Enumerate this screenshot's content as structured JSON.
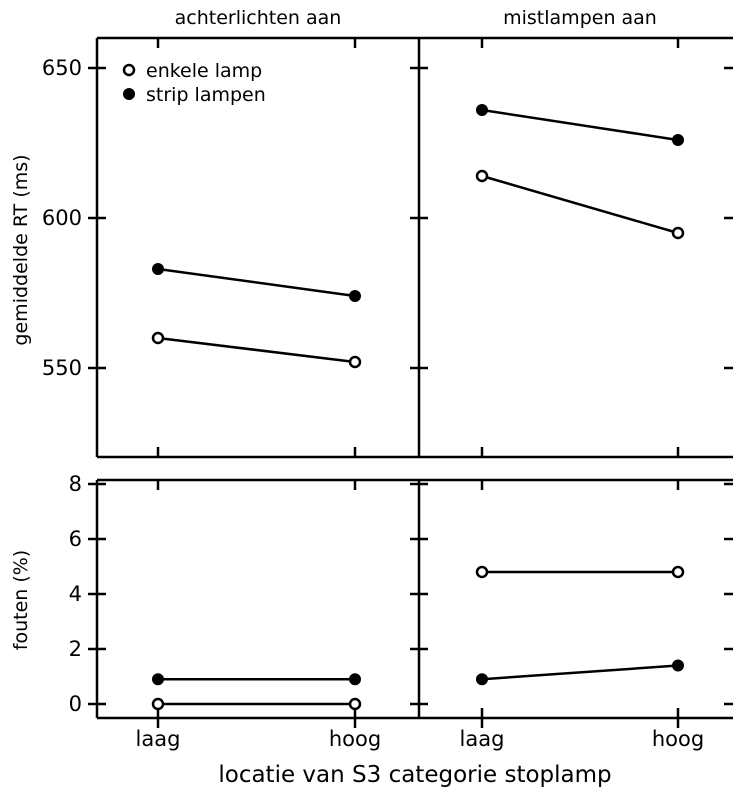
{
  "chart_data": [
    {
      "type": "line",
      "panel": "top-left",
      "title": "achterlichten aan",
      "categories": [
        "laag",
        "hoog"
      ],
      "ylabel": "gemiddelde RT (ms)",
      "ylim": [
        520,
        663
      ],
      "yticks": [
        550,
        600,
        650
      ],
      "series": [
        {
          "name": "enkele lamp",
          "marker": "open",
          "values": [
            560,
            552
          ]
        },
        {
          "name": "strip lampen",
          "marker": "filled",
          "values": [
            583,
            574
          ]
        }
      ]
    },
    {
      "type": "line",
      "panel": "top-right",
      "title": "mistlampen aan",
      "categories": [
        "laag",
        "hoog"
      ],
      "ylim": [
        520,
        663
      ],
      "series": [
        {
          "name": "enkele lamp",
          "marker": "open",
          "values": [
            614,
            595
          ]
        },
        {
          "name": "strip lampen",
          "marker": "filled",
          "values": [
            636,
            626
          ]
        }
      ]
    },
    {
      "type": "line",
      "panel": "bottom-left",
      "categories": [
        "laag",
        "hoog"
      ],
      "ylabel": "fouten (%)",
      "ylim": [
        -0.5,
        8
      ],
      "yticks": [
        0,
        2,
        4,
        6,
        8
      ],
      "series": [
        {
          "name": "enkele lamp",
          "marker": "open",
          "values": [
            0,
            0
          ]
        },
        {
          "name": "strip lampen",
          "marker": "filled",
          "values": [
            0.9,
            0.9
          ]
        }
      ]
    },
    {
      "type": "line",
      "panel": "bottom-right",
      "categories": [
        "laag",
        "hoog"
      ],
      "ylim": [
        -0.5,
        8
      ],
      "series": [
        {
          "name": "enkele lamp",
          "marker": "open",
          "values": [
            4.8,
            4.8
          ]
        },
        {
          "name": "strip lampen",
          "marker": "filled",
          "values": [
            0.9,
            1.4
          ]
        }
      ]
    }
  ],
  "xlabel": "locatie van S3 categorie stoplamp",
  "legend": {
    "placement": "top-left",
    "items": [
      {
        "label": "enkele lamp",
        "marker": "open"
      },
      {
        "label": "strip lampen",
        "marker": "filled"
      }
    ]
  },
  "grid": false
}
